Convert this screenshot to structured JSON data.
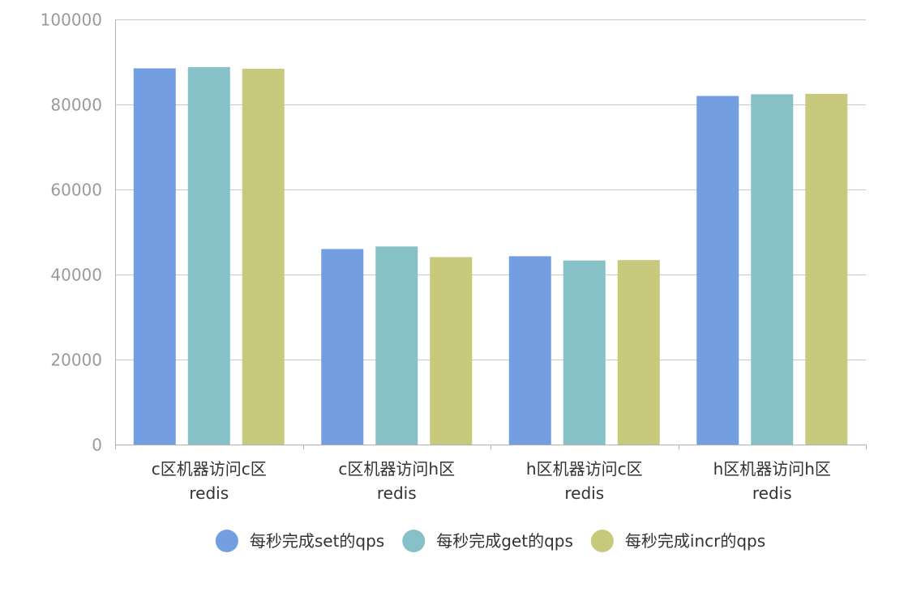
{
  "chart_data": {
    "type": "bar",
    "title": "",
    "xlabel": "",
    "ylabel": "",
    "ylim": [
      0,
      100000
    ],
    "y_ticks": [
      "0",
      "20000",
      "40000",
      "60000",
      "80000",
      "100000"
    ],
    "grid": true,
    "legend_position": "bottom",
    "categories": [
      [
        "c区机器访问c区",
        "redis"
      ],
      [
        "c区机器访问h区",
        "redis"
      ],
      [
        "h区机器访问c区",
        "redis"
      ],
      [
        "h区机器访问h区",
        "redis"
      ]
    ],
    "series": [
      {
        "name": "每秒完成set的qps",
        "color": "#739ee1",
        "values": [
          88500,
          46000,
          44300,
          82000
        ]
      },
      {
        "name": "每秒完成get的qps",
        "color": "#86c1c8",
        "values": [
          88800,
          46600,
          43300,
          82400
        ]
      },
      {
        "name": "每秒完成incr的qps",
        "color": "#c9c97d",
        "values": [
          88400,
          44100,
          43400,
          82500
        ]
      }
    ]
  },
  "colors": {
    "axis": "#b0b0b0",
    "grid": "#c8c8c8",
    "tick_label": "#9a9a9a",
    "category_label": "#333333",
    "legend_text": "#333333"
  }
}
